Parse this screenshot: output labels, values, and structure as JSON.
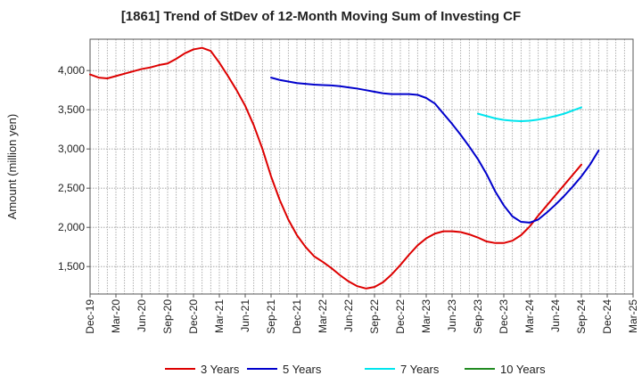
{
  "chart_data": {
    "type": "line",
    "title": "[1861]  Trend of StDev of 12-Month Moving Sum of Investing CF",
    "ylabel": "Amount (million yen)",
    "xlabel": "",
    "ylim": [
      1150,
      4400
    ],
    "yticks": [
      1500,
      2000,
      2500,
      3000,
      3500,
      4000
    ],
    "ytick_labels": [
      "1,500",
      "2,000",
      "2,500",
      "3,000",
      "3,500",
      "4,000"
    ],
    "x_tick_labels": [
      "Dec-19",
      "Mar-20",
      "Jun-20",
      "Sep-20",
      "Dec-20",
      "Mar-21",
      "Jun-21",
      "Sep-21",
      "Dec-21",
      "Mar-22",
      "Jun-22",
      "Sep-22",
      "Dec-22",
      "Mar-23",
      "Jun-23",
      "Sep-23",
      "Dec-23",
      "Mar-24",
      "Jun-24",
      "Sep-24",
      "Dec-24",
      "Mar-25"
    ],
    "x_start": "2019-12",
    "x_end": "2025-03",
    "grid": true,
    "legend_position": "bottom",
    "series": [
      {
        "name": "3 Years",
        "color": "#dd0000",
        "start": "2019-12",
        "values": [
          3950,
          3910,
          3900,
          3930,
          3960,
          3990,
          4020,
          4040,
          4070,
          4090,
          4150,
          4220,
          4270,
          4290,
          4250,
          4100,
          3930,
          3750,
          3550,
          3300,
          3000,
          2650,
          2350,
          2100,
          1900,
          1750,
          1630,
          1560,
          1480,
          1390,
          1310,
          1250,
          1220,
          1240,
          1300,
          1400,
          1520,
          1650,
          1770,
          1860,
          1920,
          1950,
          1950,
          1940,
          1910,
          1870,
          1820,
          1800,
          1800,
          1830,
          1900,
          2010,
          2150,
          2280,
          2410,
          2540,
          2670,
          2800
        ]
      },
      {
        "name": "5 Years",
        "color": "#0000cc",
        "start": "2021-09",
        "values": [
          3910,
          3880,
          3860,
          3840,
          3830,
          3820,
          3815,
          3810,
          3800,
          3785,
          3770,
          3750,
          3730,
          3710,
          3700,
          3700,
          3700,
          3690,
          3650,
          3580,
          3450,
          3320,
          3180,
          3030,
          2870,
          2680,
          2460,
          2280,
          2140,
          2070,
          2060,
          2100,
          2190,
          2290,
          2400,
          2520,
          2650,
          2800,
          2980
        ]
      },
      {
        "name": "7 Years",
        "color": "#00e5ee",
        "start": "2023-09",
        "values": [
          3450,
          3420,
          3390,
          3370,
          3360,
          3355,
          3360,
          3375,
          3395,
          3420,
          3450,
          3490,
          3530
        ]
      },
      {
        "name": "10 Years",
        "color": "#228b22",
        "start": "2024-09",
        "values": []
      }
    ]
  }
}
